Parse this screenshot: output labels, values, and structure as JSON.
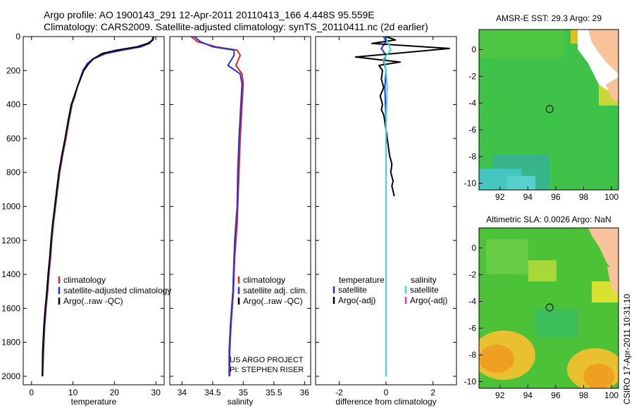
{
  "header": {
    "line1": "Argo profile: AO 1900143_291 12-Apr-2011 20110413_166 4.448S 95.559E",
    "line2": "Climatology: CARS2009. Satellite-adjusted climatology: synTS_20110411.nc (2d earlier)"
  },
  "colors": {
    "climatology": "#dd2222",
    "satellite": "#2233dd",
    "argo": "#000000",
    "satellite_diff": "#33dddd",
    "argo_adj": "#dd33dd"
  },
  "chart_data": [
    {
      "type": "line",
      "id": "temperature",
      "xlabel": "temperature",
      "ylabel": "",
      "xlim": [
        -2,
        32
      ],
      "ylim": [
        2050,
        0
      ],
      "xticks": [
        0,
        10,
        20,
        30
      ],
      "yticks": [
        0,
        200,
        400,
        600,
        800,
        1000,
        1200,
        1400,
        1600,
        1800,
        2000
      ],
      "legend": [
        "climatology",
        "satellite-adjusted climatology",
        "Argo(..raw -QC)"
      ],
      "series": [
        {
          "name": "climatology",
          "color": "#dd2222",
          "x": [
            29.5,
            29.2,
            28.5,
            26.5,
            22.0,
            18.0,
            15.0,
            13.5,
            12.5,
            11.8,
            11.0,
            10.5,
            9.8,
            9.0,
            8.3,
            7.5,
            6.8,
            6.3,
            5.8,
            5.3,
            4.9,
            4.6,
            4.2,
            3.9,
            3.5,
            3.2,
            2.9,
            2.7
          ],
          "y": [
            0,
            20,
            40,
            60,
            80,
            100,
            130,
            160,
            200,
            250,
            300,
            350,
            400,
            500,
            600,
            700,
            800,
            900,
            1000,
            1100,
            1200,
            1300,
            1400,
            1500,
            1600,
            1700,
            1850,
            2000
          ]
        },
        {
          "name": "satellite-adjusted climatology",
          "color": "#2233dd",
          "x": [
            29.4,
            29.1,
            28.4,
            26.3,
            21.8,
            17.8,
            14.9,
            13.4,
            12.4,
            11.7,
            11.0,
            10.4,
            9.7,
            8.9,
            8.2,
            7.4,
            6.7,
            6.2,
            5.7,
            5.2,
            4.8,
            4.5,
            4.1,
            3.8,
            3.4,
            3.1,
            2.8,
            2.6
          ],
          "y": [
            0,
            20,
            40,
            60,
            80,
            100,
            130,
            160,
            200,
            250,
            300,
            350,
            400,
            500,
            600,
            700,
            800,
            900,
            1000,
            1100,
            1200,
            1300,
            1400,
            1500,
            1600,
            1700,
            1850,
            2000
          ]
        },
        {
          "name": "Argo(..raw -QC)",
          "color": "#000000",
          "x": [
            29.5,
            29.3,
            28.0,
            25.5,
            20.5,
            17.0,
            15.0,
            13.8,
            12.6,
            11.8,
            11.0,
            10.3,
            9.6,
            8.8,
            8.1,
            7.3,
            6.6,
            6.1,
            5.6,
            5.1,
            4.7,
            4.4,
            4.0,
            3.7,
            3.3,
            3.0,
            2.7,
            2.6
          ],
          "y": [
            0,
            20,
            40,
            60,
            80,
            100,
            130,
            160,
            200,
            250,
            300,
            350,
            400,
            500,
            600,
            700,
            800,
            900,
            1000,
            1100,
            1200,
            1300,
            1400,
            1500,
            1600,
            1700,
            1850,
            2000
          ]
        }
      ]
    },
    {
      "type": "line",
      "id": "salinity",
      "xlabel": "salinity",
      "ylabel": "",
      "xlim": [
        33.8,
        36.1
      ],
      "ylim": [
        2050,
        0
      ],
      "xticks": [
        34,
        34.5,
        35,
        35.5,
        36
      ],
      "xticklabels": [
        "34",
        "34.5",
        "35",
        "35.5",
        "36"
      ],
      "legend": [
        "climatology",
        "satellite adj. clim.",
        "Argo(..raw -QC)"
      ],
      "annotations": [
        "US ARGO PROJECT",
        "PI: STEPHEN RISER"
      ],
      "series": [
        {
          "name": "climatology",
          "color": "#dd2222",
          "x": [
            34.15,
            34.25,
            34.55,
            34.9,
            34.95,
            34.88,
            34.98,
            35.0,
            34.98,
            34.95,
            34.93,
            34.91,
            34.9,
            34.88,
            34.86,
            34.85,
            34.84,
            34.82,
            34.8,
            34.78,
            34.78
          ],
          "y": [
            0,
            30,
            60,
            80,
            110,
            170,
            220,
            280,
            400,
            600,
            800,
            1000,
            1100,
            1200,
            1300,
            1400,
            1500,
            1600,
            1700,
            1850,
            2000
          ]
        },
        {
          "name": "satellite adj. clim.",
          "color": "#2233dd",
          "x": [
            34.2,
            34.3,
            34.5,
            34.85,
            34.85,
            34.75,
            34.95,
            34.98,
            34.96,
            34.93,
            34.91,
            34.9,
            34.88,
            34.86,
            34.85,
            34.84,
            34.83,
            34.81,
            34.79,
            34.77,
            34.77
          ],
          "y": [
            0,
            30,
            60,
            80,
            110,
            170,
            220,
            280,
            400,
            600,
            800,
            1000,
            1100,
            1200,
            1300,
            1400,
            1500,
            1600,
            1700,
            1850,
            2000
          ]
        },
        {
          "name": "Argo(..raw -QC)",
          "color": "#000000",
          "x": [],
          "y": []
        }
      ]
    },
    {
      "type": "line",
      "id": "difference",
      "xlabel": "difference from climatology",
      "ylabel": "",
      "xlim": [
        -3,
        3
      ],
      "ylim": [
        2050,
        0
      ],
      "xticks": [
        -2,
        0,
        2
      ],
      "legend_temperature": {
        "heading": "temperature",
        "items": [
          "satellite",
          "Argo(-adj)"
        ]
      },
      "legend_salinity": {
        "heading": "salinity",
        "items": [
          "satellite",
          "Argo(-adj)"
        ]
      },
      "series": [
        {
          "name": "temperature satellite",
          "color": "#2233dd",
          "x": [
            -0.1,
            0.0,
            -0.2,
            0.0,
            -0.1,
            0.0,
            -0.05,
            0.0,
            0.0,
            0.0,
            0.0,
            0.0
          ],
          "y": [
            0,
            30,
            70,
            110,
            150,
            200,
            300,
            500,
            800,
            1200,
            1600,
            2000
          ]
        },
        {
          "name": "temperature Argo(-adj)",
          "color": "#000000",
          "x": [
            0.0,
            0.4,
            -0.6,
            2.7,
            -1.3,
            0.6,
            -0.3,
            -0.15,
            -0.2,
            -0.1,
            -0.25,
            -0.15,
            -0.2,
            -0.1,
            -0.05,
            0.05,
            0.15,
            0.25,
            0.2,
            0.3,
            0.25,
            0.3,
            0.35
          ],
          "y": [
            0,
            20,
            40,
            70,
            120,
            150,
            170,
            200,
            250,
            300,
            350,
            400,
            430,
            460,
            500,
            600,
            700,
            750,
            800,
            850,
            880,
            910,
            940
          ]
        },
        {
          "name": "salinity satellite",
          "color": "#33dddd",
          "x": [
            -0.05,
            0.1,
            0.2,
            -0.1,
            0.0,
            0.05,
            0.0,
            0.0,
            0.0,
            0.0
          ],
          "y": [
            0,
            40,
            80,
            130,
            200,
            300,
            500,
            900,
            1400,
            2000
          ]
        }
      ]
    },
    {
      "type": "heatmap",
      "id": "sst",
      "title": "AMSR-E SST: 29.3 Argo: 29",
      "xlim": [
        90.5,
        100.5
      ],
      "ylim": [
        -10.5,
        1.5
      ],
      "xticks": [
        92,
        94,
        96,
        98,
        100
      ],
      "yticks": [
        0,
        -2,
        -4,
        -6,
        -8,
        -10
      ],
      "marker": {
        "lon": 95.559,
        "lat": -4.448
      }
    },
    {
      "type": "heatmap",
      "id": "sla",
      "title": "Altimetric SLA: 0.0026 Argo: NaN",
      "xlim": [
        90.5,
        100.5
      ],
      "ylim": [
        -10.5,
        1.5
      ],
      "xticks": [
        92,
        94,
        96,
        98,
        100
      ],
      "yticks": [
        0,
        -2,
        -4,
        -6,
        -8,
        -10
      ],
      "marker": {
        "lon": 95.559,
        "lat": -4.448
      }
    }
  ],
  "footer": {
    "stamp": "CSIRO 17-Apr-2011 10:31:10"
  }
}
